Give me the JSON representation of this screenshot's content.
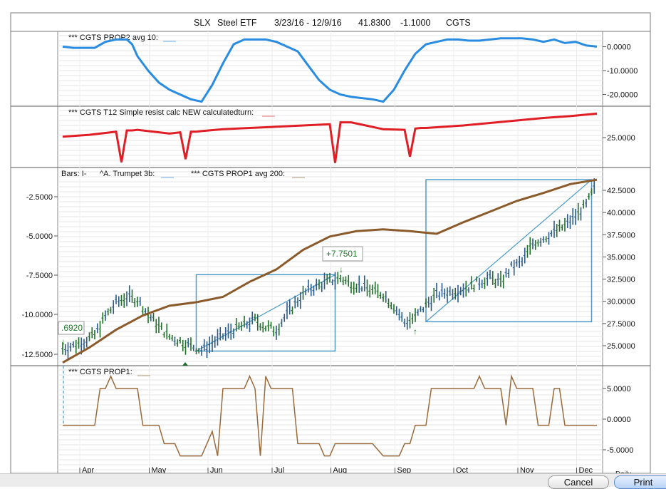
{
  "header": {
    "ticker": "SLX",
    "name": "Steel ETF",
    "date_range": "3/23/16 - 12/9/16",
    "last_price": "41.8300",
    "change": "-1.1000",
    "study": "CGTS"
  },
  "panels": {
    "prop2": {
      "label": "*** CGTS PROP2 avg 10:",
      "swatch": "#2f8fe0"
    },
    "t12": {
      "label": "*** CGTS T12 Simple resist calc NEW calculatedturn:",
      "swatch": "#e01e25"
    },
    "price": {
      "bars_label": "Bars: I-",
      "trumpet_label": "^A. Trumpet 3b:",
      "trumpet_swatch": "#4a9bc9",
      "avg_label": "*** CGTS PROP1 avg 200:",
      "avg_swatch": "#8a5a2b"
    },
    "prop1": {
      "label": "*** CGTS PROP1:",
      "swatch": "#9a6a3a"
    }
  },
  "annotations": {
    "gain_box": "+7.7501",
    "left_box": ".6920"
  },
  "footer": {
    "cancel_label": "Cancel",
    "print_label": "Print",
    "period_label": "Daily"
  },
  "colors": {
    "prop2_line": "#2a8ce0",
    "t12_line": "#e01e25",
    "avg200_line": "#8a5a2b",
    "trumpet_line": "#4a9bc9",
    "bar_up": "#2a5a8a",
    "bar_down": "#1e6e2a",
    "prop1_line": "#9a6a3a"
  },
  "chart_data": [
    {
      "type": "line",
      "panel": "prop2",
      "yticks": [
        "0.0000",
        "-10.0000",
        "-20.0000"
      ],
      "ylim": [
        -24,
        4
      ],
      "x": [
        0,
        2,
        4,
        6,
        8,
        10,
        12,
        13,
        14,
        16,
        18,
        20,
        22,
        24,
        26,
        28,
        30,
        32,
        34,
        36,
        38,
        40,
        42,
        44,
        46,
        48,
        50,
        52,
        54,
        56,
        58,
        60,
        62,
        64,
        66,
        68,
        70,
        72,
        74,
        76,
        78,
        80,
        82,
        84,
        86,
        88,
        90,
        92,
        94,
        96,
        98,
        100
      ],
      "values": [
        0,
        -0.5,
        -0.5,
        -0.5,
        2,
        3,
        3,
        1,
        -4,
        -10,
        -15,
        -18,
        -20,
        -22,
        -23,
        -16,
        -7,
        1,
        3,
        3,
        3,
        2,
        0,
        -2,
        -8,
        -14,
        -18,
        -20,
        -21,
        -21.5,
        -22,
        -23,
        -18,
        -10,
        -3,
        1,
        2,
        3,
        3,
        2.5,
        2.5,
        3,
        3.5,
        3.5,
        3.5,
        3,
        2,
        3,
        1.5,
        2,
        0.5,
        0
      ]
    },
    {
      "type": "line",
      "panel": "t12",
      "yticks": [
        "25.0000"
      ],
      "ylim": [
        22,
        30
      ],
      "x": [
        0,
        5,
        10,
        11,
        12,
        13,
        14,
        20,
        22,
        23,
        24,
        25,
        26,
        30,
        35,
        40,
        45,
        50,
        51,
        52,
        53,
        54,
        60,
        64,
        65,
        66,
        67,
        68,
        75,
        80,
        85,
        90,
        95,
        100
      ],
      "values": [
        26.6,
        26.9,
        27.4,
        22.5,
        27.6,
        27.6,
        27.7,
        27.1,
        27.3,
        23.0,
        27.4,
        27.4,
        27.5,
        27.8,
        28.0,
        28.2,
        28.4,
        28.6,
        22.4,
        28.9,
        28.9,
        28.9,
        27.8,
        27.7,
        23.4,
        27.9,
        28.0,
        28.0,
        28.4,
        28.8,
        29.2,
        29.6,
        29.9,
        30.3
      ]
    },
    {
      "type": "line",
      "panel": "price",
      "name_avg": "*** CGTS PROP1 avg 200:",
      "yticks_left": [
        "-2.5000",
        "-5.0000",
        "-7.5000",
        "-10.0000",
        "-12.5000"
      ],
      "yticks_right": [
        "42.5000",
        "40.0000",
        "37.5000",
        "35.0000",
        "32.5000",
        "30.0000",
        "27.5000",
        "25.0000"
      ],
      "ylim": [
        23,
        44
      ],
      "avg200": {
        "x": [
          0,
          5,
          10,
          15,
          20,
          25,
          30,
          35,
          40,
          45,
          50,
          55,
          60,
          65,
          70,
          75,
          80,
          85,
          90,
          95,
          100
        ],
        "values": [
          23.1,
          24.8,
          26.8,
          28.4,
          29.5,
          29.9,
          30.5,
          32.2,
          33.6,
          35.8,
          37.3,
          37.9,
          38.1,
          37.9,
          37.6,
          38.9,
          40.1,
          41.3,
          42.2,
          43.2,
          43.7
        ]
      },
      "price_bars": {
        "x": [
          0,
          2,
          4,
          6,
          8,
          10,
          12,
          14,
          16,
          18,
          20,
          22,
          24,
          26,
          28,
          30,
          32,
          34,
          36,
          38,
          40,
          42,
          44,
          46,
          48,
          50,
          52,
          54,
          56,
          58,
          60,
          62,
          64,
          66,
          68,
          70,
          72,
          74,
          76,
          78,
          80,
          82,
          84,
          86,
          88,
          90,
          92,
          94,
          96,
          98,
          100
        ],
        "values": [
          24.7,
          25.0,
          25.5,
          26.2,
          28.3,
          29.8,
          30.5,
          30.2,
          28.5,
          27.2,
          26.0,
          25.5,
          25.0,
          24.5,
          25.3,
          26.1,
          26.8,
          27.3,
          27.9,
          27.1,
          26.8,
          28.6,
          30.1,
          31.3,
          31.8,
          32.3,
          32.6,
          32.0,
          31.7,
          31.2,
          30.8,
          29.5,
          27.6,
          28.2,
          29.6,
          30.8,
          31.0,
          31.3,
          31.6,
          32.2,
          32.6,
          32.1,
          33.8,
          34.4,
          36.5,
          37.1,
          37.8,
          38.5,
          39.6,
          40.8,
          43.3
        ]
      },
      "boxes": [
        {
          "x": [
            25,
            51
          ],
          "y": [
            24.4,
            33.0
          ]
        },
        {
          "x": [
            68,
            99
          ],
          "y": [
            27.7,
            43.7
          ]
        }
      ],
      "annotations": [
        {
          "label": "+7.7501",
          "x": 51,
          "y": 33.0
        },
        {
          "label": ".6920",
          "x": 0,
          "y": 24.7
        }
      ]
    },
    {
      "type": "line",
      "panel": "prop1",
      "yticks": [
        "5.0000",
        "0.0000",
        "-5.0000"
      ],
      "ylim": [
        -7,
        8
      ],
      "x": [
        0,
        2,
        4,
        6,
        7,
        8,
        9,
        10,
        11,
        12,
        13,
        14,
        15,
        16,
        17,
        18,
        19,
        20,
        21,
        22,
        23,
        24,
        25,
        26,
        27,
        28,
        29,
        30,
        31,
        32,
        33,
        34,
        35,
        36,
        37,
        38,
        39,
        40,
        41,
        42,
        43,
        44,
        45,
        46,
        47,
        48,
        49,
        50,
        51,
        52,
        53,
        54,
        55,
        56,
        57,
        58,
        59,
        60,
        61,
        62,
        63,
        64,
        65,
        66,
        67,
        68,
        69,
        70,
        71,
        72,
        73,
        74,
        75,
        76,
        77,
        78,
        79,
        80,
        81,
        82,
        83,
        84,
        85,
        86,
        87,
        88,
        89,
        90,
        91,
        92,
        93,
        94,
        95,
        96,
        97,
        98,
        99,
        100
      ],
      "values": [
        -1,
        -1,
        -1,
        -1,
        5,
        5,
        7,
        5,
        5,
        5,
        5,
        5,
        -1,
        -1,
        -1,
        -1,
        -4,
        -4,
        -4,
        -6,
        -6,
        -6,
        -6,
        -6,
        -4,
        -2,
        -6,
        5,
        5,
        5,
        5,
        5,
        7,
        5,
        -6,
        7,
        5,
        5,
        5,
        5,
        5,
        -4,
        -4,
        -4,
        -4,
        -4,
        -6,
        -6,
        -4,
        -4,
        -4,
        -4,
        -4,
        -4,
        -4,
        -4,
        -5,
        -6,
        -6,
        -6,
        -6,
        -4,
        -4,
        -1,
        -1,
        -1,
        5,
        5,
        5,
        5,
        5,
        5,
        5,
        5,
        5,
        7,
        5,
        5,
        5,
        5,
        -1,
        7,
        5,
        5,
        5,
        5,
        -1,
        -1,
        -1,
        5,
        5,
        -1,
        -1,
        -1,
        -1,
        -1,
        -1,
        -1
      ]
    }
  ],
  "x_axis": {
    "months": [
      "Apr",
      "May",
      "Jun",
      "Jul",
      "Aug",
      "Sep",
      "Oct",
      "Nov",
      "Dec"
    ],
    "month_positions": [
      4,
      17,
      28,
      40,
      51,
      63,
      74,
      86,
      97
    ]
  }
}
